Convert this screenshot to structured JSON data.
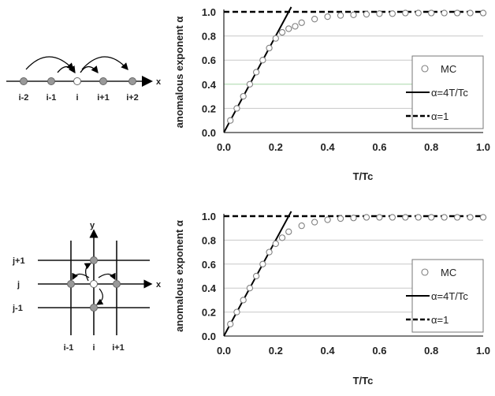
{
  "left_diagrams": {
    "chain": {
      "axis_label": "x",
      "site_labels": [
        "i-2",
        "i-1",
        "i",
        "i+1",
        "i+2"
      ]
    },
    "lattice": {
      "x_label": "x",
      "y_label": "y",
      "row_labels": [
        "j+1",
        "j",
        "j-1"
      ],
      "col_labels": [
        "i-1",
        "i",
        "i+1"
      ]
    }
  },
  "colors": {
    "axis": "#333333",
    "grid": "#c8c8c8",
    "grid_highlight": "#a8d8a8",
    "marker_edge": "#808080",
    "line": "#000000",
    "node_fill": "#999999"
  },
  "chart_data": [
    {
      "type": "line",
      "xlabel": "T/Tc",
      "ylabel": "anomalous exponent α",
      "xlim": [
        0,
        1.0
      ],
      "ylim": [
        0,
        1.0
      ],
      "xticks": [
        "0.0",
        "0.2",
        "0.4",
        "0.6",
        "0.8",
        "1.0"
      ],
      "yticks": [
        "0.0",
        "0.2",
        "0.4",
        "0.6",
        "0.8",
        "1.0"
      ],
      "grid": "horizontal",
      "legend_position": "right",
      "series": [
        {
          "name": "MC",
          "style": "open-circle",
          "x": [
            0.025,
            0.05,
            0.075,
            0.1,
            0.125,
            0.15,
            0.175,
            0.2,
            0.225,
            0.25,
            0.275,
            0.3,
            0.35,
            0.4,
            0.45,
            0.5,
            0.55,
            0.6,
            0.65,
            0.7,
            0.75,
            0.8,
            0.85,
            0.9,
            0.95,
            1.0
          ],
          "y": [
            0.1,
            0.2,
            0.3,
            0.4,
            0.5,
            0.6,
            0.7,
            0.78,
            0.83,
            0.86,
            0.88,
            0.91,
            0.94,
            0.96,
            0.97,
            0.975,
            0.98,
            0.985,
            0.985,
            0.99,
            0.99,
            0.99,
            0.99,
            0.99,
            0.99,
            0.99
          ]
        },
        {
          "name": "α=4T/Tc",
          "style": "solid",
          "x": [
            0,
            0.26
          ],
          "y": [
            0,
            1.04
          ]
        },
        {
          "name": "α=1",
          "style": "dashed",
          "x": [
            0,
            1.0
          ],
          "y": [
            1.0,
            1.0
          ]
        }
      ]
    },
    {
      "type": "line",
      "xlabel": "T/Tc",
      "ylabel": "anomalous exponent α",
      "xlim": [
        0,
        1.0
      ],
      "ylim": [
        0,
        1.0
      ],
      "xticks": [
        "0.0",
        "0.2",
        "0.4",
        "0.6",
        "0.8",
        "1.0"
      ],
      "yticks": [
        "0.0",
        "0.2",
        "0.4",
        "0.6",
        "0.8",
        "1.0"
      ],
      "grid": "horizontal",
      "legend_position": "right",
      "series": [
        {
          "name": "MC",
          "style": "open-circle",
          "x": [
            0.025,
            0.05,
            0.075,
            0.1,
            0.125,
            0.15,
            0.175,
            0.2,
            0.225,
            0.25,
            0.3,
            0.35,
            0.4,
            0.45,
            0.5,
            0.55,
            0.6,
            0.65,
            0.7,
            0.75,
            0.8,
            0.85,
            0.9,
            0.95,
            1.0
          ],
          "y": [
            0.1,
            0.2,
            0.3,
            0.4,
            0.5,
            0.6,
            0.7,
            0.77,
            0.82,
            0.87,
            0.92,
            0.95,
            0.97,
            0.98,
            0.985,
            0.99,
            0.99,
            0.99,
            0.99,
            0.99,
            0.99,
            0.99,
            0.99,
            0.99,
            0.99
          ]
        },
        {
          "name": "α=4T/Tc",
          "style": "solid",
          "x": [
            0,
            0.26
          ],
          "y": [
            0,
            1.04
          ]
        },
        {
          "name": "α=1",
          "style": "dashed",
          "x": [
            0,
            1.0
          ],
          "y": [
            1.0,
            1.0
          ]
        }
      ]
    }
  ]
}
